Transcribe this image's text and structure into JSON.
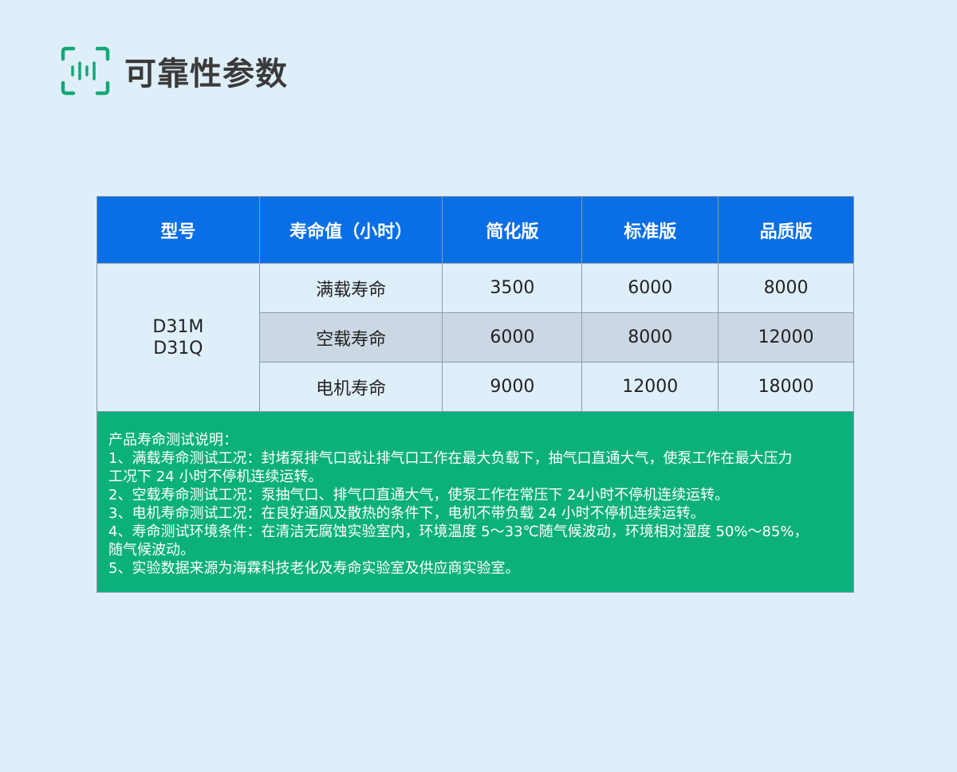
{
  "page": {
    "title": "可靠性参数",
    "icon": "barcode-scan-icon",
    "accent": "#12a876"
  },
  "table": {
    "headers": [
      "型号",
      "寿命值（小时）",
      "简化版",
      "标准版",
      "品质版"
    ],
    "model": [
      "D31M",
      "D31Q"
    ],
    "rows": [
      {
        "label": "满载寿命",
        "values": [
          "3500",
          "6000",
          "8000"
        ]
      },
      {
        "label": "空载寿命",
        "values": [
          "6000",
          "8000",
          "12000"
        ]
      },
      {
        "label": "电机寿命",
        "values": [
          "9000",
          "12000",
          "18000"
        ]
      }
    ],
    "notes": [
      "产品寿命测试说明：",
      "1、满载寿命测试工况：封堵泵排气口或让排气口工作在最大负载下，抽气口直通大气，使泵工作在最大压力",
      "工况下 24 小时不停机连续运转。",
      "2、空载寿命测试工况：泵抽气口、排气口直通大气，使泵工作在常压下 24小时不停机连续运转。",
      "3、电机寿命测试工况：在良好通风及散热的条件下，电机不带负载 24 小时不停机连续运转。",
      "4、寿命测试环境条件：在清洁无腐蚀实验室内，环境温度 5～33℃随气候波动，环境相对湿度 50%～85%，",
      "随气候波动。",
      "5、实验数据来源为海霖科技老化及寿命实验室及供应商实验室。"
    ]
  }
}
